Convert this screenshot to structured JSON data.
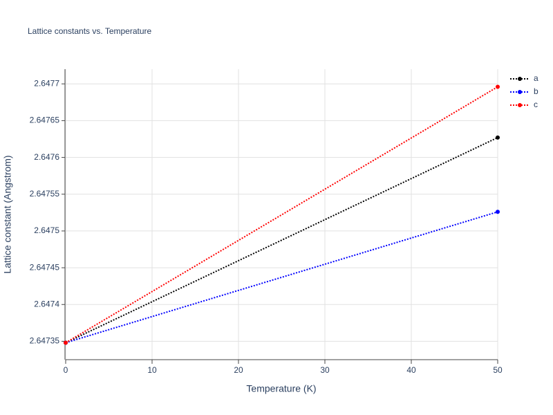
{
  "chart_data": {
    "type": "line",
    "title": "Lattice constants vs. Temperature",
    "x_label": "Temperature (K)",
    "y_label": "Lattice constant (Angstrom)",
    "x": [
      0,
      50
    ],
    "series": [
      {
        "name": "a",
        "color": "#000000",
        "values": [
          2.647348,
          2.647627
        ]
      },
      {
        "name": "b",
        "color": "#0000ff",
        "values": [
          2.647348,
          2.647526
        ]
      },
      {
        "name": "c",
        "color": "#ff0000",
        "values": [
          2.647348,
          2.647696
        ]
      }
    ],
    "xlim": [
      0,
      50
    ],
    "xticks": [
      0,
      10,
      20,
      30,
      40,
      50
    ],
    "ylim": [
      2.647325,
      2.64772
    ],
    "yticks": [
      2.64735,
      2.6474,
      2.64745,
      2.6475,
      2.64755,
      2.6476,
      2.64765,
      2.6477
    ],
    "grid": true,
    "legend": "right"
  }
}
